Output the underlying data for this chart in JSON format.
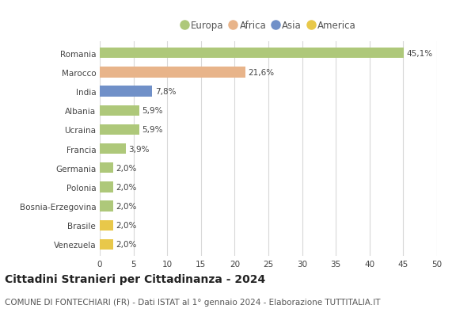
{
  "countries": [
    "Romania",
    "Marocco",
    "India",
    "Albania",
    "Ucraina",
    "Francia",
    "Germania",
    "Polonia",
    "Bosnia-Erzegovina",
    "Brasile",
    "Venezuela"
  ],
  "values": [
    45.1,
    21.6,
    7.8,
    5.9,
    5.9,
    3.9,
    2.0,
    2.0,
    2.0,
    2.0,
    2.0
  ],
  "labels": [
    "45,1%",
    "21,6%",
    "7,8%",
    "5,9%",
    "5,9%",
    "3,9%",
    "2,0%",
    "2,0%",
    "2,0%",
    "2,0%",
    "2,0%"
  ],
  "continents": [
    "Europa",
    "Africa",
    "Asia",
    "Europa",
    "Europa",
    "Europa",
    "Europa",
    "Europa",
    "Europa",
    "America",
    "America"
  ],
  "colors": {
    "Europa": "#aec87a",
    "Africa": "#e8b48a",
    "Asia": "#7090c8",
    "America": "#e8c84a"
  },
  "xlim": [
    0,
    50
  ],
  "xticks": [
    0,
    5,
    10,
    15,
    20,
    25,
    30,
    35,
    40,
    45,
    50
  ],
  "title": "Cittadini Stranieri per Cittadinanza - 2024",
  "subtitle": "COMUNE DI FONTECHIARI (FR) - Dati ISTAT al 1° gennaio 2024 - Elaborazione TUTTITALIA.IT",
  "background_color": "#ffffff",
  "grid_color": "#d8d8d8",
  "bar_height": 0.55,
  "title_fontsize": 10,
  "subtitle_fontsize": 7.5,
  "tick_fontsize": 7.5,
  "label_fontsize": 7.5,
  "legend_fontsize": 8.5
}
